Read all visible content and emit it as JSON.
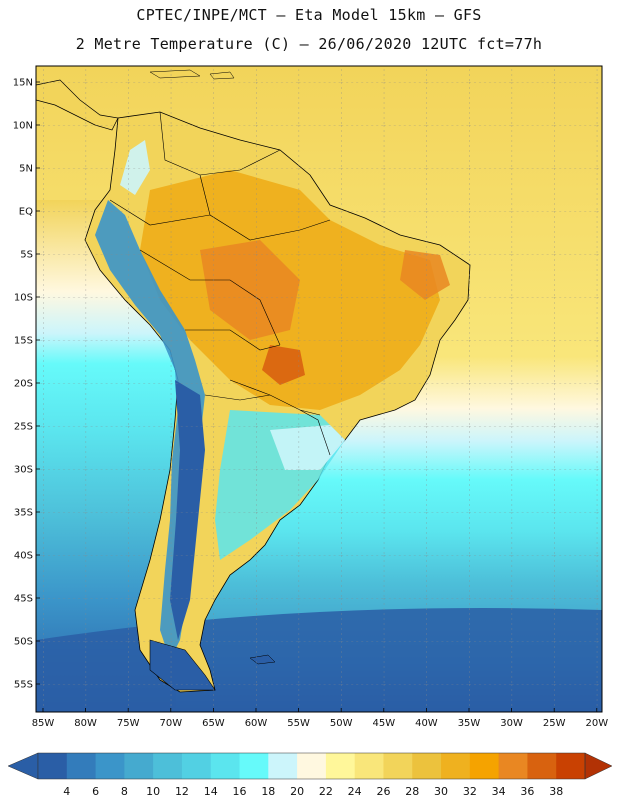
{
  "title": {
    "line1": "CPTEC/INPE/MCT —  Eta Model 15km — GFS",
    "line2": "2 Metre Temperature (C) — 26/06/2020 12UTC fct=77h"
  },
  "axes": {
    "lat_labels": [
      "15N",
      "10N",
      "5N",
      "EQ",
      "5S",
      "10S",
      "15S",
      "20S",
      "25S",
      "30S",
      "35S",
      "40S",
      "45S",
      "50S",
      "55S"
    ],
    "lon_labels": [
      "85W",
      "80W",
      "75W",
      "70W",
      "65W",
      "60W",
      "55W",
      "50W",
      "45W",
      "40W",
      "35W",
      "30W",
      "25W",
      "20W"
    ]
  },
  "colorbar": {
    "levels": [
      "4",
      "6",
      "8",
      "10",
      "12",
      "14",
      "16",
      "18",
      "20",
      "22",
      "24",
      "26",
      "28",
      "30",
      "32",
      "34",
      "36",
      "38"
    ],
    "colors": [
      "#2a5ea6",
      "#337cbb",
      "#3b95c9",
      "#45aacf",
      "#4dbfd9",
      "#52d0e3",
      "#5be5ee",
      "#66fafa",
      "#ccf5fb",
      "#fff8e0",
      "#fff79a",
      "#f9e67a",
      "#f2d45a",
      "#ecc23d",
      "#efb11f",
      "#f5a300",
      "#e98722",
      "#d8620f",
      "#c94102"
    ],
    "low_arrow_color": "#2a5ea6",
    "high_arrow_color": "#b23205"
  },
  "colors": {
    "ocean_cold": "#2a5ea6",
    "ocean_cool": "#45aacf",
    "ocean_mild": "#5be5ee",
    "ocean_warm": "#f9e67a",
    "land_hot": "#ecc23d",
    "land_very_hot": "#efb11f",
    "andes": "#ccf5fb"
  }
}
